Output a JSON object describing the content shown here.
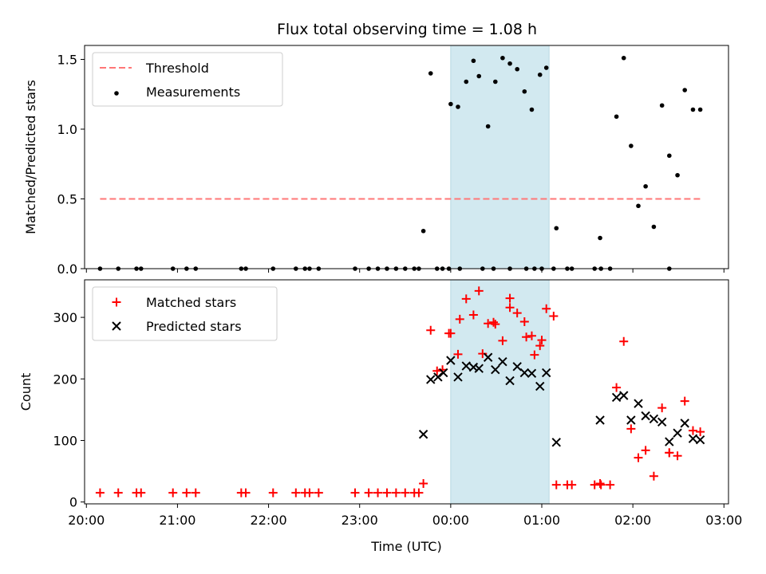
{
  "chart_data": [
    {
      "type": "scatter",
      "title": "Flux total observing time = 1.08 h",
      "xlabel": "",
      "ylabel": "Matched/Predicted stars",
      "xlim_hours": [
        19.98,
        27.05
      ],
      "ylim": [
        0,
        1.6
      ],
      "yticks": [
        0.0,
        0.5,
        1.0,
        1.5
      ],
      "ytick_labels": [
        "0.0",
        "0.5",
        "1.0",
        "1.5"
      ],
      "shaded_span_hours": [
        24.0,
        25.08
      ],
      "shade_color": "#d2e9f0",
      "legend_position": "upper left",
      "series": [
        {
          "name": "Threshold",
          "style": "dashed-line",
          "color": "#ff7777",
          "x_range_hours": [
            20.15,
            26.75
          ],
          "y": 0.5
        },
        {
          "name": "Measurements",
          "style": "dot",
          "color": "#000000",
          "x_hours": [
            20.15,
            20.35,
            20.55,
            20.6,
            20.95,
            21.1,
            21.2,
            21.7,
            21.75,
            22.05,
            22.3,
            22.4,
            22.45,
            22.55,
            22.95,
            23.1,
            23.2,
            23.3,
            23.4,
            23.5,
            23.6,
            23.65,
            23.85,
            23.91,
            23.98,
            24.1,
            24.35,
            24.47,
            24.65,
            24.83,
            24.92,
            25.0,
            25.13,
            25.28,
            25.33,
            25.58,
            25.65,
            25.75,
            26.4,
            23.7,
            23.78,
            24.0,
            24.08,
            24.17,
            24.25,
            24.31,
            24.41,
            24.49,
            24.57,
            24.65,
            24.73,
            24.81,
            24.89,
            24.98,
            25.05,
            25.16,
            25.64,
            25.82,
            25.9,
            25.98,
            26.06,
            26.14,
            26.23,
            26.32,
            26.4,
            26.49,
            26.57,
            26.66,
            26.74
          ],
          "y": [
            0,
            0,
            0,
            0,
            0,
            0,
            0,
            0,
            0,
            0,
            0,
            0,
            0,
            0,
            0,
            0,
            0,
            0,
            0,
            0,
            0,
            0,
            0,
            0,
            0,
            0,
            0,
            0,
            0,
            0,
            0,
            0,
            0,
            0,
            0,
            0,
            0,
            0,
            0,
            0.27,
            1.4,
            1.18,
            1.16,
            1.34,
            1.49,
            1.38,
            1.02,
            1.34,
            1.51,
            1.47,
            1.43,
            1.27,
            1.14,
            1.39,
            1.44,
            0.29,
            0.22,
            1.09,
            1.51,
            0.88,
            0.45,
            0.59,
            0.3,
            1.17,
            0.81,
            0.67,
            1.28,
            1.14,
            1.14
          ]
        }
      ]
    },
    {
      "type": "scatter",
      "title": "",
      "xlabel": "Time (UTC)",
      "ylabel": "Count",
      "xlim_hours": [
        19.98,
        27.05
      ],
      "ylim": [
        -3,
        361
      ],
      "yticks": [
        0,
        100,
        200,
        300
      ],
      "ytick_labels": [
        "0",
        "100",
        "200",
        "300"
      ],
      "xticks_hours": [
        20,
        21,
        22,
        23,
        24,
        25,
        26,
        27
      ],
      "xtick_labels": [
        "20:00",
        "21:00",
        "22:00",
        "23:00",
        "00:00",
        "01:00",
        "02:00",
        "03:00"
      ],
      "shaded_span_hours": [
        24.0,
        25.08
      ],
      "shade_color": "#d2e9f0",
      "legend_position": "upper left",
      "series": [
        {
          "name": "Matched stars",
          "marker": "plus",
          "color": "#ff0000",
          "x_hours": [
            20.15,
            20.35,
            20.55,
            20.6,
            20.95,
            21.1,
            21.2,
            21.7,
            21.75,
            22.05,
            22.3,
            22.4,
            22.45,
            22.55,
            22.95,
            23.1,
            23.2,
            23.3,
            23.4,
            23.5,
            23.6,
            23.65,
            23.85,
            23.91,
            23.98,
            24.1,
            24.35,
            24.47,
            24.65,
            24.83,
            24.92,
            25.0,
            25.13,
            25.28,
            25.33,
            25.58,
            25.65,
            25.75,
            26.4,
            23.7,
            23.78,
            24.0,
            24.08,
            24.17,
            24.25,
            24.31,
            24.41,
            24.49,
            24.57,
            24.65,
            24.73,
            24.81,
            24.89,
            24.98,
            25.05,
            25.16,
            25.64,
            25.82,
            25.9,
            25.98,
            26.06,
            26.14,
            26.23,
            26.32,
            26.4,
            26.49,
            26.57,
            26.66,
            26.74
          ],
          "y": [
            15,
            15,
            15,
            15,
            15,
            15,
            15,
            15,
            15,
            15,
            15,
            15,
            15,
            15,
            15,
            15,
            15,
            15,
            15,
            15,
            15,
            15,
            213,
            215,
            274,
            297,
            241,
            292,
            316,
            268,
            239,
            263,
            302,
            28,
            28,
            28,
            28,
            28,
            80,
            30,
            279,
            274,
            240,
            330,
            304,
            343,
            290,
            289,
            262,
            331,
            307,
            293,
            270,
            254,
            314,
            28,
            30,
            186,
            261,
            119,
            72,
            84,
            42,
            153,
            80,
            75,
            164,
            116,
            114
          ]
        },
        {
          "name": "Predicted stars",
          "marker": "x",
          "color": "#000000",
          "x_hours": [
            23.7,
            23.78,
            23.86,
            23.92,
            24.0,
            24.08,
            24.17,
            24.25,
            24.31,
            24.41,
            24.49,
            24.57,
            24.65,
            24.73,
            24.81,
            24.89,
            24.98,
            25.05,
            25.16,
            25.64,
            25.82,
            25.9,
            25.98,
            26.06,
            26.14,
            26.23,
            26.32,
            26.4,
            26.49,
            26.57,
            26.66,
            26.74
          ],
          "y": [
            110,
            199,
            203,
            210,
            230,
            203,
            221,
            219,
            217,
            235,
            215,
            228,
            197,
            220,
            210,
            209,
            188,
            210,
            97,
            133,
            170,
            173,
            133,
            160,
            140,
            135,
            130,
            98,
            112,
            128,
            103,
            101
          ]
        }
      ]
    }
  ]
}
